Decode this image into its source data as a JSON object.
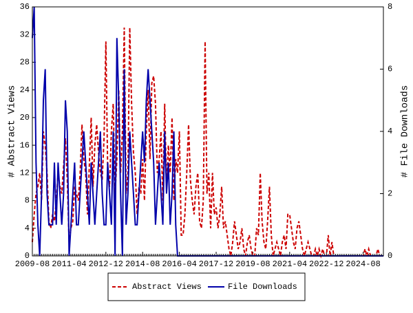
{
  "chart_data": {
    "type": "line",
    "categories": [
      "2009-08",
      null,
      null,
      null,
      null,
      null,
      null,
      null,
      null,
      null,
      null,
      null,
      null,
      null,
      null,
      null,
      null,
      null,
      null,
      null,
      "2011-04",
      null,
      null,
      null,
      null,
      null,
      null,
      null,
      null,
      null,
      null,
      null,
      null,
      null,
      null,
      null,
      null,
      null,
      null,
      null,
      "2012-12",
      null,
      null,
      null,
      null,
      null,
      null,
      null,
      null,
      null,
      null,
      null,
      null,
      null,
      null,
      null,
      null,
      null,
      null,
      null,
      "2014-08",
      null,
      null,
      null,
      null,
      null,
      null,
      null,
      null,
      null,
      null,
      null,
      null,
      null,
      null,
      null,
      null,
      null,
      null,
      null,
      "2016-04",
      null,
      null,
      null,
      null,
      null,
      null,
      null,
      null,
      null,
      null,
      null,
      null,
      null,
      null,
      null,
      null,
      null,
      null,
      null,
      "2017-12",
      null,
      null,
      null,
      null,
      null,
      null,
      null,
      null,
      null,
      null,
      null,
      null,
      null,
      null,
      null,
      null,
      null,
      null,
      null,
      "2019-08",
      null,
      null,
      null,
      null,
      null,
      null,
      null,
      null,
      null,
      null,
      null,
      null,
      null,
      null,
      null,
      null,
      null,
      null,
      null,
      "2021-04",
      null,
      null,
      null,
      null,
      null,
      null,
      null,
      null,
      null,
      null,
      null,
      null,
      null,
      null,
      null,
      null,
      null,
      null,
      null,
      "2022-12",
      null,
      null,
      null,
      null,
      null,
      null,
      null,
      null,
      null,
      null,
      null,
      null,
      null,
      null,
      null,
      null,
      null,
      null,
      null,
      "2024-08",
      null,
      null,
      null,
      null,
      null,
      null,
      null,
      null,
      null,
      null,
      null
    ],
    "series": [
      {
        "name": "Abstract Views",
        "color": "#cc0000",
        "dashed": true,
        "values": [
          2,
          6,
          9,
          10,
          12,
          8,
          18,
          16,
          12,
          5,
          4,
          6,
          5,
          8,
          12,
          10,
          9,
          13,
          17,
          11,
          2,
          4,
          5,
          10,
          9,
          8,
          12,
          19,
          14,
          12,
          6,
          13,
          20,
          10,
          16,
          19,
          15,
          12,
          11,
          17,
          31,
          12,
          10,
          18,
          22,
          9,
          14,
          24,
          12,
          18,
          33,
          9,
          12,
          33,
          22,
          15,
          12,
          6,
          10,
          9,
          14,
          8,
          18,
          24,
          14,
          25,
          26,
          22,
          12,
          14,
          18,
          8,
          22,
          10,
          16,
          12,
          20,
          8,
          14,
          12,
          18,
          3,
          3,
          6,
          12,
          19,
          11,
          8,
          6,
          10,
          12,
          5,
          4,
          8,
          31,
          9,
          12,
          4,
          12,
          6,
          7,
          4,
          6,
          10,
          4,
          5,
          3,
          1,
          0,
          2,
          5,
          3,
          1,
          2,
          4,
          1,
          0,
          2,
          3,
          1,
          0,
          0,
          4,
          3,
          12,
          5,
          2,
          1,
          5,
          10,
          3,
          0,
          1,
          2,
          1,
          0,
          2,
          3,
          1,
          6,
          6,
          4,
          2,
          1,
          4,
          5,
          3,
          1,
          0,
          1,
          2,
          1,
          0,
          0,
          1,
          0,
          1,
          0,
          1,
          0,
          0,
          3,
          0,
          2,
          0,
          0,
          0,
          0,
          0,
          0,
          0,
          0,
          0,
          0,
          0,
          0,
          0,
          0,
          0,
          0,
          0,
          1,
          0,
          1,
          0,
          0,
          0,
          0,
          1,
          0,
          0,
          0
        ]
      },
      {
        "name": "File Downloads",
        "color": "#0000aa",
        "dashed": false,
        "axis": "y2",
        "values": [
          7,
          8,
          3,
          1,
          0,
          2,
          5,
          6,
          2,
          1,
          1,
          1,
          3,
          1,
          3,
          2,
          1,
          2,
          5,
          4,
          0,
          1,
          2,
          3,
          1,
          1,
          2,
          3,
          4,
          3,
          2,
          1,
          3,
          2,
          1,
          2,
          3,
          4,
          2,
          1,
          1,
          3,
          2,
          1,
          4,
          0,
          7,
          5,
          2,
          0,
          6,
          1,
          2,
          4,
          3,
          2,
          1,
          1,
          2,
          3,
          4,
          3,
          5,
          6,
          5,
          4,
          3,
          1,
          2,
          3,
          2,
          1,
          4,
          2,
          3,
          1,
          2,
          4,
          1,
          0,
          0,
          0,
          0,
          0,
          0,
          0,
          0,
          0,
          0,
          0,
          0,
          0,
          0,
          0,
          0,
          0,
          0,
          0,
          0,
          0,
          0,
          0,
          0,
          0,
          0,
          0,
          0,
          0,
          0,
          0,
          0,
          0,
          0,
          0,
          0,
          0,
          0,
          0,
          0,
          0,
          0,
          0,
          0,
          0,
          0,
          0,
          0,
          0,
          0,
          0,
          0,
          0,
          0,
          0,
          0,
          0,
          0,
          0,
          0,
          0,
          0,
          0,
          0,
          0,
          0,
          0,
          0,
          0,
          0,
          0,
          0,
          0,
          0,
          0,
          0,
          0,
          0,
          0,
          0,
          0,
          0,
          0,
          0,
          0,
          0,
          0,
          0,
          0,
          0,
          0,
          0,
          0,
          0,
          0,
          0,
          0,
          0,
          0,
          0,
          0,
          0,
          0,
          0,
          0,
          0,
          0,
          0,
          0,
          0,
          0,
          0,
          0
        ]
      }
    ],
    "ylabel": "# Abstract Views",
    "y2label": "# File Downloads",
    "ylim": [
      0,
      36
    ],
    "yticks": [
      0,
      4,
      8,
      12,
      16,
      20,
      24,
      28,
      32,
      36
    ],
    "y2lim": [
      0,
      8
    ],
    "y2ticks": [
      0,
      2,
      4,
      6,
      8
    ],
    "legend": "bottom"
  }
}
